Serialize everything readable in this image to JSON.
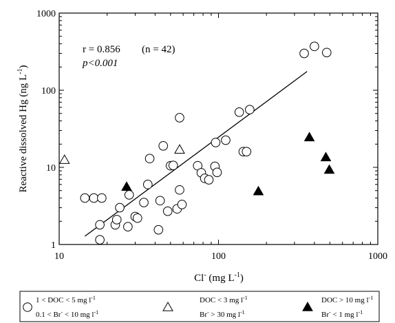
{
  "chart_data": {
    "type": "scatter",
    "x_scale": "log",
    "y_scale": "log",
    "xlim": [
      10,
      1000
    ],
    "ylim": [
      1,
      1000
    ],
    "xlabel": {
      "main": "Cl",
      "sup": "-",
      "units": " (mg L",
      "units_sup": "-1",
      "close": ")"
    },
    "ylabel": {
      "main": "Reactive dissolved Hg (ng L",
      "sup": "-1",
      "close": ")"
    },
    "x_ticks": [
      {
        "value": 10,
        "label": "10"
      },
      {
        "value": 100,
        "label": "100"
      },
      {
        "value": 1000,
        "label": "1000"
      }
    ],
    "y_ticks": [
      {
        "value": 1,
        "label": "1"
      },
      {
        "value": 10,
        "label": "10"
      },
      {
        "value": 100,
        "label": "100"
      },
      {
        "value": 1000,
        "label": "1000"
      }
    ],
    "annotations": {
      "r_text": "r = 0.856",
      "n_text": "(n = 42)",
      "p_text": "p<0.001"
    },
    "regression_line": {
      "x": [
        14.5,
        360
      ],
      "y": [
        1.28,
        175
      ]
    },
    "series": [
      {
        "marker": "circle-open",
        "legend_lines": [
          {
            "a": "1 < DOC < 5 mg l",
            "a_sup": "-1",
            "b": "",
            "b_sup": "",
            "c": ""
          },
          {
            "a": "0.1 < Br",
            "a_sup": "-",
            "b": " < 10 mg l",
            "b_sup": "-1",
            "c": ""
          }
        ],
        "points": [
          [
            14.5,
            4.0
          ],
          [
            16.5,
            4.0
          ],
          [
            18.5,
            4.0
          ],
          [
            18.0,
            1.8
          ],
          [
            18.0,
            1.15
          ],
          [
            22.5,
            1.8
          ],
          [
            23.0,
            2.1
          ],
          [
            24.0,
            3.0
          ],
          [
            27.5,
            4.4
          ],
          [
            27.0,
            1.7
          ],
          [
            30.0,
            2.3
          ],
          [
            31.0,
            2.2
          ],
          [
            34.0,
            3.5
          ],
          [
            36.0,
            6.0
          ],
          [
            37.0,
            13.0
          ],
          [
            42.0,
            1.55
          ],
          [
            43.0,
            3.7
          ],
          [
            45.0,
            19.0
          ],
          [
            48.0,
            2.7
          ],
          [
            50.0,
            10.5
          ],
          [
            52.0,
            10.6
          ],
          [
            55.0,
            2.9
          ],
          [
            57.0,
            5.1
          ],
          [
            57.0,
            44.0
          ],
          [
            59.0,
            3.3
          ],
          [
            74.0,
            10.5
          ],
          [
            78.0,
            8.5
          ],
          [
            82.0,
            7.2
          ],
          [
            87.0,
            6.9
          ],
          [
            95.0,
            10.3
          ],
          [
            96.0,
            21.0
          ],
          [
            98.0,
            8.6
          ],
          [
            111.0,
            22.5
          ],
          [
            135.0,
            52.0
          ],
          [
            143.0,
            16.0
          ],
          [
            150.0,
            16.0
          ],
          [
            157.0,
            56.0
          ],
          [
            345.0,
            300.0
          ],
          [
            400.0,
            370.0
          ],
          [
            478.0,
            308.0
          ]
        ]
      },
      {
        "marker": "triangle-open",
        "legend_lines": [
          {
            "a": "DOC < 3 mg l",
            "a_sup": "-1",
            "b": "",
            "b_sup": "",
            "c": ""
          },
          {
            "a": "Br",
            "a_sup": "-",
            "b": " > 30 mg l",
            "b_sup": "-1",
            "c": ""
          }
        ],
        "points": [
          [
            10.8,
            12.5
          ],
          [
            57.0,
            17.0
          ]
        ]
      },
      {
        "marker": "triangle-filled",
        "legend_lines": [
          {
            "a": "DOC > 10 mg l",
            "a_sup": "-1",
            "b": "",
            "b_sup": "",
            "c": ""
          },
          {
            "a": "Br",
            "a_sup": "-",
            "b": " < 1 mg l",
            "b_sup": "-1",
            "c": ""
          }
        ],
        "points": [
          [
            26.5,
            5.6
          ],
          [
            178.0,
            4.9
          ],
          [
            372.0,
            24.5
          ],
          [
            472.0,
            13.5
          ],
          [
            496.0,
            9.3
          ]
        ]
      }
    ]
  }
}
